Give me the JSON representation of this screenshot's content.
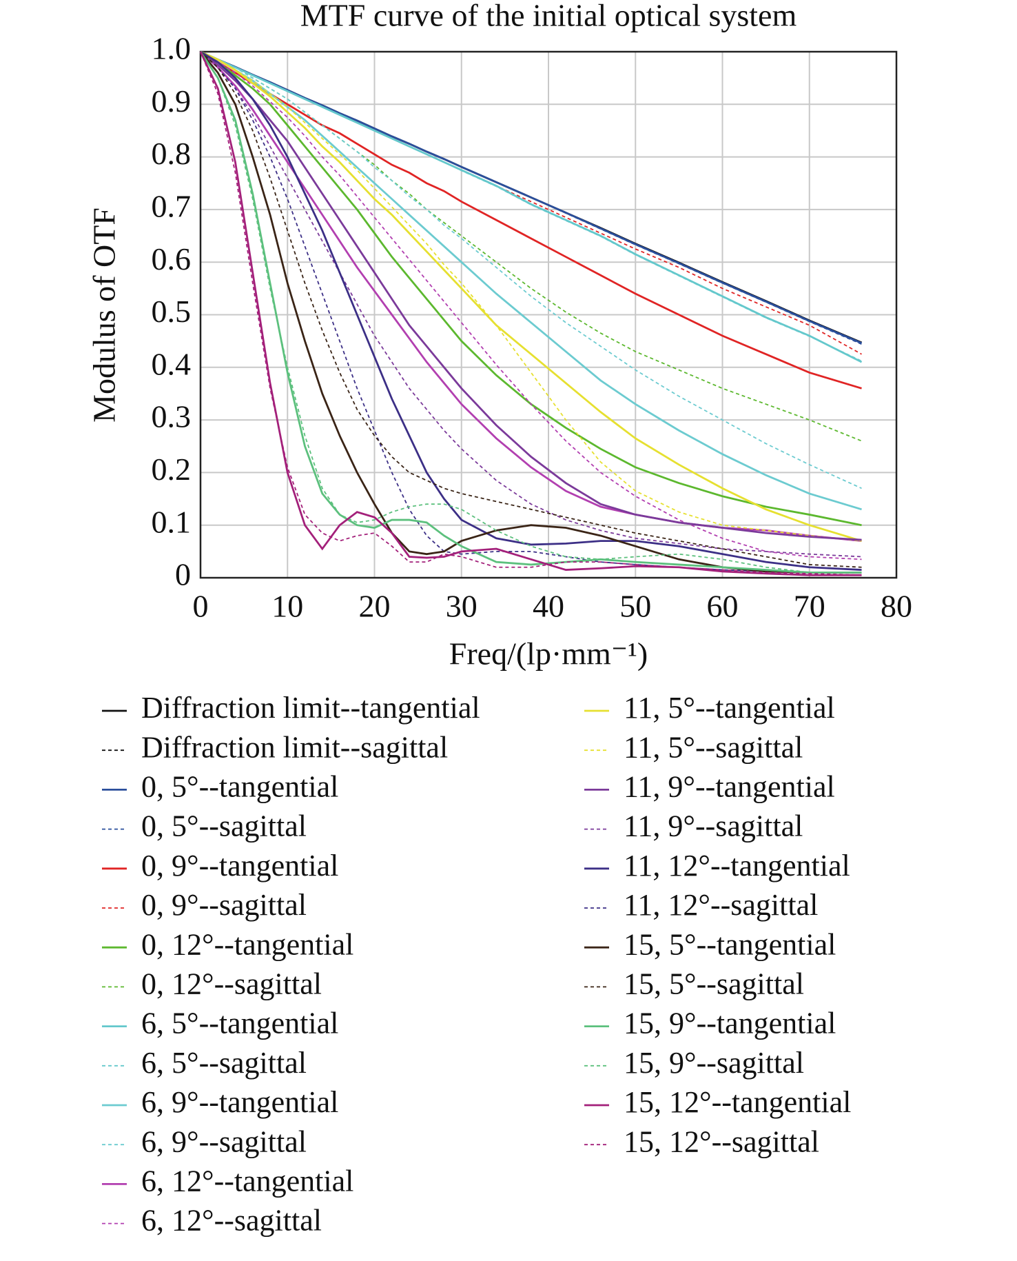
{
  "chart_data": {
    "type": "line",
    "title": "MTF curve of the initial optical system",
    "xlabel": "Freq/(lp·mm⁻¹)",
    "ylabel": "Modulus of OTF",
    "x": [
      0,
      2,
      4,
      6,
      8,
      10,
      12,
      14,
      16,
      18,
      20,
      22,
      24,
      26,
      28,
      30,
      34,
      38,
      42,
      46,
      50,
      55,
      60,
      65,
      70,
      76
    ],
    "xlim": [
      0,
      80
    ],
    "xticks": [
      0,
      10,
      20,
      30,
      40,
      50,
      60,
      70,
      80
    ],
    "ylim": [
      0,
      1
    ],
    "yticks": [
      0,
      0.1,
      0.2,
      0.3,
      0.4,
      0.5,
      0.6,
      0.7,
      0.8,
      0.9,
      {
        "value": 1,
        "label": "1.0"
      }
    ],
    "grid": true,
    "series": [
      {
        "name": "Diffraction limit--tangential",
        "color": "#111111",
        "style": "solid",
        "values": [
          1,
          0.985,
          0.971,
          0.956,
          0.942,
          0.927,
          0.912,
          0.898,
          0.883,
          0.869,
          0.854,
          0.839,
          0.825,
          0.81,
          0.796,
          0.781,
          0.752,
          0.723,
          0.694,
          0.665,
          0.635,
          0.599,
          0.562,
          0.526,
          0.489,
          0.447
        ]
      },
      {
        "name": "Diffraction limit--sagittal",
        "color": "#111111",
        "style": "dashed",
        "values": [
          1,
          0.985,
          0.971,
          0.956,
          0.942,
          0.927,
          0.912,
          0.898,
          0.883,
          0.869,
          0.854,
          0.839,
          0.825,
          0.81,
          0.796,
          0.781,
          0.752,
          0.723,
          0.694,
          0.665,
          0.635,
          0.599,
          0.562,
          0.526,
          0.489,
          0.447
        ]
      },
      {
        "name": "0, 5°--tangential",
        "color": "#2b4f9c",
        "style": "solid",
        "values": [
          1,
          0.985,
          0.971,
          0.956,
          0.942,
          0.927,
          0.912,
          0.898,
          0.883,
          0.869,
          0.854,
          0.839,
          0.825,
          0.81,
          0.796,
          0.781,
          0.752,
          0.723,
          0.694,
          0.664,
          0.634,
          0.598,
          0.561,
          0.525,
          0.488,
          0.446
        ]
      },
      {
        "name": "0, 5°--sagittal",
        "color": "#2b4f9c",
        "style": "dashed",
        "values": [
          1,
          0.985,
          0.971,
          0.956,
          0.942,
          0.927,
          0.912,
          0.898,
          0.883,
          0.869,
          0.854,
          0.839,
          0.825,
          0.81,
          0.796,
          0.781,
          0.752,
          0.723,
          0.693,
          0.663,
          0.633,
          0.597,
          0.56,
          0.524,
          0.487,
          0.444
        ]
      },
      {
        "name": "0, 9°--tangential",
        "color": "#e02424",
        "style": "solid",
        "values": [
          1,
          0.98,
          0.96,
          0.94,
          0.92,
          0.9,
          0.88,
          0.86,
          0.845,
          0.825,
          0.805,
          0.785,
          0.77,
          0.75,
          0.735,
          0.715,
          0.68,
          0.645,
          0.61,
          0.575,
          0.54,
          0.5,
          0.46,
          0.425,
          0.39,
          0.36
        ]
      },
      {
        "name": "0, 9°--sagittal",
        "color": "#e02424",
        "style": "dashed",
        "values": [
          1,
          0.985,
          0.97,
          0.955,
          0.94,
          0.925,
          0.91,
          0.895,
          0.88,
          0.865,
          0.85,
          0.835,
          0.82,
          0.805,
          0.79,
          0.775,
          0.745,
          0.715,
          0.685,
          0.655,
          0.625,
          0.59,
          0.55,
          0.515,
          0.48,
          0.425
        ]
      },
      {
        "name": "0, 12°--tangential",
        "color": "#5cb82e",
        "style": "solid",
        "values": [
          1,
          0.98,
          0.955,
          0.93,
          0.9,
          0.86,
          0.82,
          0.78,
          0.74,
          0.7,
          0.655,
          0.61,
          0.57,
          0.53,
          0.49,
          0.45,
          0.385,
          0.33,
          0.285,
          0.245,
          0.21,
          0.18,
          0.155,
          0.135,
          0.12,
          0.1
        ]
      },
      {
        "name": "0, 12°--sagittal",
        "color": "#5cb82e",
        "style": "dashed",
        "values": [
          1,
          0.985,
          0.97,
          0.95,
          0.93,
          0.91,
          0.885,
          0.86,
          0.835,
          0.81,
          0.785,
          0.755,
          0.73,
          0.7,
          0.675,
          0.65,
          0.6,
          0.55,
          0.505,
          0.465,
          0.43,
          0.395,
          0.36,
          0.33,
          0.3,
          0.26
        ]
      },
      {
        "name": "6, 5°--tangential",
        "color": "#64c8cc",
        "style": "solid",
        "values": [
          1,
          0.985,
          0.97,
          0.955,
          0.94,
          0.925,
          0.91,
          0.895,
          0.88,
          0.865,
          0.85,
          0.835,
          0.82,
          0.805,
          0.79,
          0.775,
          0.745,
          0.71,
          0.68,
          0.65,
          0.615,
          0.575,
          0.535,
          0.495,
          0.46,
          0.41
        ]
      },
      {
        "name": "6, 5°--sagittal",
        "color": "#64c8cc",
        "style": "dashed",
        "values": [
          1,
          0.985,
          0.97,
          0.955,
          0.94,
          0.925,
          0.91,
          0.895,
          0.88,
          0.865,
          0.85,
          0.835,
          0.82,
          0.805,
          0.79,
          0.774,
          0.744,
          0.709,
          0.679,
          0.649,
          0.614,
          0.574,
          0.534,
          0.494,
          0.459,
          0.412
        ]
      },
      {
        "name": "6, 9°--tangential",
        "color": "#6ccbd0",
        "style": "solid",
        "values": [
          1,
          0.985,
          0.965,
          0.945,
          0.92,
          0.895,
          0.87,
          0.84,
          0.81,
          0.78,
          0.75,
          0.72,
          0.69,
          0.66,
          0.63,
          0.6,
          0.54,
          0.485,
          0.43,
          0.375,
          0.33,
          0.28,
          0.235,
          0.195,
          0.16,
          0.13
        ]
      },
      {
        "name": "6, 9°--sagittal",
        "color": "#6ccbd0",
        "style": "dashed",
        "values": [
          1,
          0.985,
          0.97,
          0.95,
          0.93,
          0.91,
          0.885,
          0.86,
          0.835,
          0.81,
          0.78,
          0.755,
          0.725,
          0.7,
          0.67,
          0.645,
          0.59,
          0.535,
          0.485,
          0.44,
          0.395,
          0.345,
          0.3,
          0.255,
          0.215,
          0.17
        ]
      },
      {
        "name": "6, 12°--tangential",
        "color": "#b23fb0",
        "style": "solid",
        "values": [
          1,
          0.97,
          0.935,
          0.89,
          0.84,
          0.79,
          0.74,
          0.69,
          0.64,
          0.59,
          0.545,
          0.5,
          0.455,
          0.41,
          0.37,
          0.33,
          0.265,
          0.21,
          0.165,
          0.135,
          0.12,
          0.105,
          0.095,
          0.09,
          0.08,
          0.07
        ]
      },
      {
        "name": "6, 12°--sagittal",
        "color": "#b23fb0",
        "style": "dashed",
        "values": [
          1,
          0.98,
          0.96,
          0.935,
          0.905,
          0.875,
          0.84,
          0.8,
          0.765,
          0.725,
          0.685,
          0.645,
          0.605,
          0.565,
          0.525,
          0.485,
          0.405,
          0.33,
          0.26,
          0.2,
          0.155,
          0.11,
          0.075,
          0.05,
          0.04,
          0.035
        ]
      },
      {
        "name": "11, 5°--tangential",
        "color": "#e6e030",
        "style": "solid",
        "values": [
          1,
          0.985,
          0.965,
          0.94,
          0.915,
          0.885,
          0.855,
          0.82,
          0.79,
          0.755,
          0.72,
          0.69,
          0.655,
          0.62,
          0.585,
          0.55,
          0.48,
          0.425,
          0.37,
          0.315,
          0.265,
          0.215,
          0.17,
          0.13,
          0.1,
          0.07
        ]
      },
      {
        "name": "11, 5°--sagittal",
        "color": "#e6e030",
        "style": "dashed",
        "values": [
          1,
          0.985,
          0.965,
          0.945,
          0.92,
          0.895,
          0.865,
          0.835,
          0.805,
          0.775,
          0.74,
          0.705,
          0.67,
          0.635,
          0.595,
          0.56,
          0.48,
          0.39,
          0.3,
          0.22,
          0.165,
          0.125,
          0.1,
          0.09,
          0.08,
          0.07
        ]
      },
      {
        "name": "11, 9°--tangential",
        "color": "#7b3a9a",
        "style": "solid",
        "values": [
          1,
          0.975,
          0.945,
          0.91,
          0.87,
          0.83,
          0.78,
          0.73,
          0.68,
          0.63,
          0.58,
          0.53,
          0.48,
          0.44,
          0.4,
          0.36,
          0.29,
          0.23,
          0.18,
          0.14,
          0.12,
          0.105,
          0.095,
          0.085,
          0.078,
          0.072
        ]
      },
      {
        "name": "11, 9°--sagittal",
        "color": "#7b3a9a",
        "style": "dashed",
        "values": [
          1,
          0.97,
          0.93,
          0.88,
          0.82,
          0.76,
          0.7,
          0.64,
          0.58,
          0.52,
          0.46,
          0.41,
          0.36,
          0.32,
          0.28,
          0.245,
          0.185,
          0.14,
          0.11,
          0.09,
          0.075,
          0.065,
          0.055,
          0.05,
          0.045,
          0.04
        ]
      },
      {
        "name": "11, 12°--tangential",
        "color": "#3c2f86",
        "style": "solid",
        "values": [
          1,
          0.98,
          0.95,
          0.91,
          0.86,
          0.8,
          0.73,
          0.66,
          0.58,
          0.5,
          0.42,
          0.34,
          0.27,
          0.2,
          0.15,
          0.11,
          0.075,
          0.063,
          0.065,
          0.07,
          0.07,
          0.06,
          0.045,
          0.03,
          0.02,
          0.015
        ]
      },
      {
        "name": "11, 12°--sagittal",
        "color": "#3c2f86",
        "style": "dashed",
        "values": [
          1,
          0.97,
          0.93,
          0.87,
          0.8,
          0.72,
          0.63,
          0.54,
          0.45,
          0.36,
          0.28,
          0.2,
          0.13,
          0.08,
          0.05,
          0.045,
          0.05,
          0.05,
          0.04,
          0.03,
          0.025,
          0.02,
          0.015,
          0.012,
          0.01,
          0.01
        ]
      },
      {
        "name": "15, 5°--tangential",
        "color": "#3a2416",
        "style": "solid",
        "values": [
          1,
          0.96,
          0.9,
          0.8,
          0.69,
          0.56,
          0.45,
          0.35,
          0.27,
          0.2,
          0.14,
          0.085,
          0.05,
          0.045,
          0.05,
          0.07,
          0.09,
          0.1,
          0.095,
          0.08,
          0.06,
          0.035,
          0.02,
          0.012,
          0.01,
          0.01
        ]
      },
      {
        "name": "15, 5°--sagittal",
        "color": "#3a2416",
        "style": "dashed",
        "values": [
          1,
          0.97,
          0.92,
          0.85,
          0.76,
          0.66,
          0.56,
          0.47,
          0.39,
          0.32,
          0.27,
          0.23,
          0.2,
          0.185,
          0.17,
          0.16,
          0.145,
          0.13,
          0.115,
          0.1,
          0.085,
          0.07,
          0.055,
          0.04,
          0.025,
          0.02
        ]
      },
      {
        "name": "15, 9°--tangential",
        "color": "#5cc07d",
        "style": "solid",
        "values": [
          1,
          0.95,
          0.87,
          0.73,
          0.56,
          0.39,
          0.25,
          0.16,
          0.12,
          0.1,
          0.095,
          0.11,
          0.11,
          0.105,
          0.08,
          0.06,
          0.03,
          0.025,
          0.03,
          0.035,
          0.03,
          0.025,
          0.02,
          0.015,
          0.01,
          0.01
        ]
      },
      {
        "name": "15, 9°--sagittal",
        "color": "#5cc07d",
        "style": "dashed",
        "values": [
          1,
          0.95,
          0.86,
          0.72,
          0.55,
          0.4,
          0.27,
          0.17,
          0.12,
          0.105,
          0.11,
          0.125,
          0.135,
          0.14,
          0.14,
          0.13,
          0.09,
          0.06,
          0.04,
          0.035,
          0.04,
          0.045,
          0.035,
          0.02,
          0.01,
          0.01
        ]
      },
      {
        "name": "15, 12°--tangential",
        "color": "#a3207a",
        "style": "solid",
        "values": [
          1,
          0.93,
          0.79,
          0.58,
          0.37,
          0.2,
          0.1,
          0.055,
          0.1,
          0.125,
          0.115,
          0.085,
          0.04,
          0.038,
          0.04,
          0.05,
          0.055,
          0.035,
          0.015,
          0.018,
          0.022,
          0.02,
          0.012,
          0.008,
          0.005,
          0.005
        ]
      },
      {
        "name": "15, 12°--sagittal",
        "color": "#a3207a",
        "style": "dashed",
        "values": [
          1,
          0.92,
          0.77,
          0.56,
          0.36,
          0.21,
          0.12,
          0.085,
          0.07,
          0.08,
          0.085,
          0.06,
          0.03,
          0.03,
          0.045,
          0.04,
          0.02,
          0.02,
          0.03,
          0.03,
          0.025,
          0.02,
          0.015,
          0.01,
          0.008,
          0.005
        ]
      }
    ]
  }
}
